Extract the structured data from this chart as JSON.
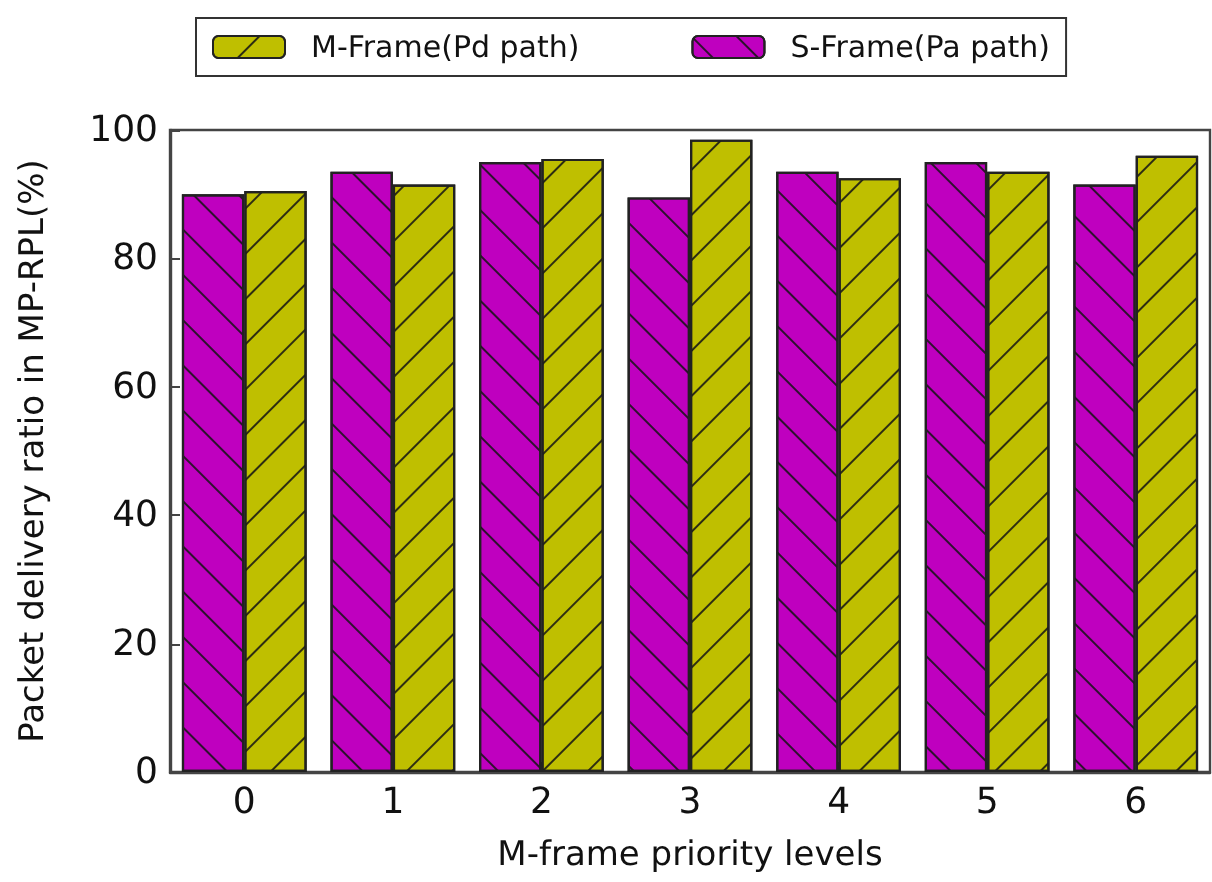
{
  "chart_data": {
    "type": "bar",
    "xlabel": "M-frame priority levels",
    "ylabel": "Packet delivery ratio in MP-RPL(%)",
    "categories": [
      "0",
      "1",
      "2",
      "3",
      "4",
      "5",
      "6"
    ],
    "series": [
      {
        "name": "M-Frame(Pd path)",
        "color": "#bfbf00",
        "values": [
          90.5,
          91.5,
          95.5,
          98.5,
          92.5,
          93.5,
          96
        ]
      },
      {
        "name": "S-Frame(Pa path)",
        "color": "#bf00bf",
        "values": [
          90,
          93.5,
          95,
          89.5,
          93.5,
          95,
          91.5
        ]
      }
    ],
    "ylim": [
      0,
      100
    ],
    "yticks": [
      0,
      20,
      40,
      60,
      80,
      100
    ],
    "grid": false,
    "legend": "top"
  }
}
